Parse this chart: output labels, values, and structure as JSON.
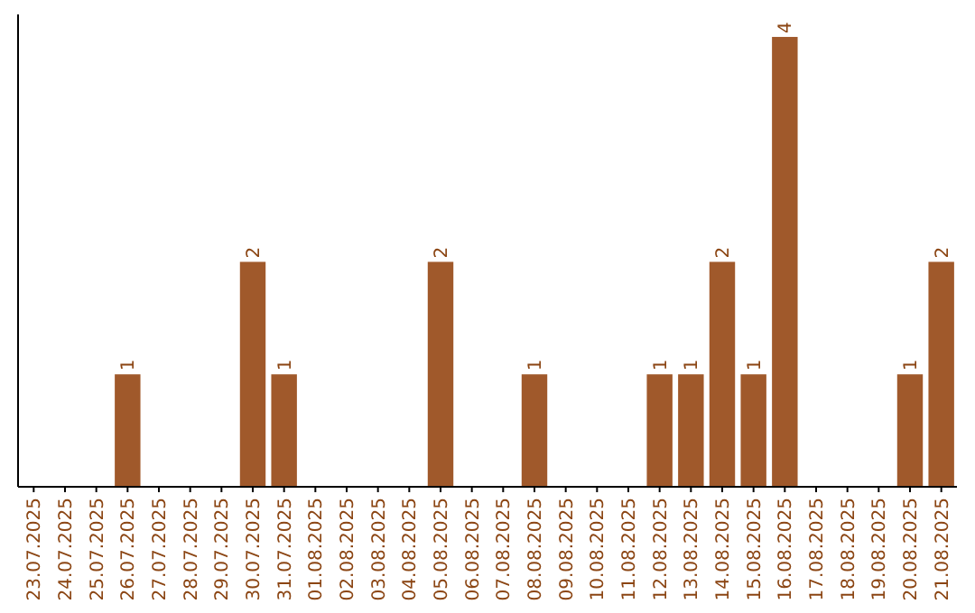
{
  "chart_data": {
    "type": "bar",
    "categories": [
      "23.07.2025",
      "24.07.2025",
      "25.07.2025",
      "26.07.2025",
      "27.07.2025",
      "28.07.2025",
      "29.07.2025",
      "30.07.2025",
      "31.07.2025",
      "01.08.2025",
      "02.08.2025",
      "03.08.2025",
      "04.08.2025",
      "05.08.2025",
      "06.08.2025",
      "07.08.2025",
      "08.08.2025",
      "09.08.2025",
      "10.08.2025",
      "11.08.2025",
      "12.08.2025",
      "13.08.2025",
      "14.08.2025",
      "15.08.2025",
      "16.08.2025",
      "17.08.2025",
      "18.08.2025",
      "19.08.2025",
      "20.08.2025",
      "21.08.2025"
    ],
    "values": [
      0,
      0,
      0,
      1,
      0,
      0,
      0,
      2,
      1,
      0,
      0,
      0,
      0,
      2,
      0,
      0,
      1,
      0,
      0,
      0,
      1,
      1,
      2,
      1,
      4,
      0,
      0,
      0,
      1,
      2
    ],
    "value_labels": [
      null,
      null,
      null,
      "1",
      null,
      null,
      null,
      "2",
      "1",
      null,
      null,
      null,
      null,
      "2",
      null,
      null,
      "1",
      null,
      null,
      null,
      "1",
      "1",
      "2",
      "1",
      "4",
      null,
      null,
      null,
      "1",
      "2"
    ],
    "color": "#a0592b",
    "ylim": [
      0,
      4.2
    ],
    "tick_labels": "x"
  }
}
